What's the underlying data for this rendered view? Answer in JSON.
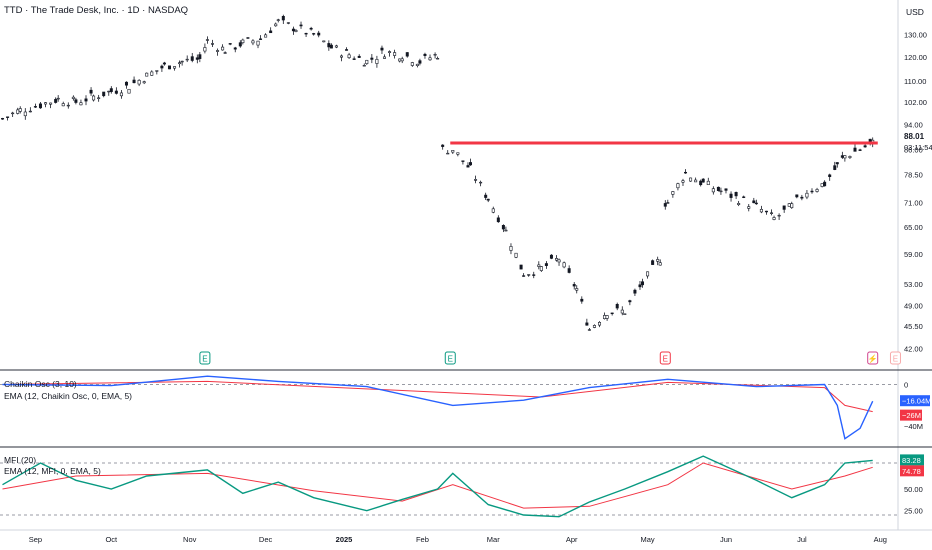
{
  "symbol_title": "TTD · The Trade Desk, Inc. · 1D · NASDAQ",
  "currency": "USD",
  "chart_data": {
    "type": "candlestick",
    "price_axis": {
      "ticks": [
        42.0,
        45.5,
        49.0,
        53.0,
        59.0,
        65.0,
        71.0,
        78.5,
        86.0,
        94.0,
        102.0,
        110.0,
        120.0,
        130.0
      ],
      "last_price": "88.01",
      "countdown": "03:11:54",
      "scale": "log"
    },
    "x_axis": {
      "ticks": [
        "Sep",
        "Oct",
        "Nov",
        "Dec",
        "2025",
        "Feb",
        "Mar",
        "Apr",
        "May",
        "Jun",
        "Jul",
        "Aug"
      ],
      "range": [
        "2024-08-18",
        "2025-08-08"
      ]
    },
    "horizontal_line": {
      "price": 88.0,
      "from": "2025-02-12",
      "to": "2025-07-31",
      "color": "#f23645"
    },
    "price_series": [
      {
        "date": "2024-08-19",
        "close": 96
      },
      {
        "date": "2024-08-26",
        "close": 99
      },
      {
        "date": "2024-09-03",
        "close": 101
      },
      {
        "date": "2024-09-10",
        "close": 103
      },
      {
        "date": "2024-09-17",
        "close": 102
      },
      {
        "date": "2024-09-24",
        "close": 104
      },
      {
        "date": "2024-10-01",
        "close": 106
      },
      {
        "date": "2024-10-08",
        "close": 108
      },
      {
        "date": "2024-10-15",
        "close": 112
      },
      {
        "date": "2024-10-22",
        "close": 116
      },
      {
        "date": "2024-10-29",
        "close": 118
      },
      {
        "date": "2024-11-05",
        "close": 119
      },
      {
        "date": "2024-11-08",
        "close": 127
      },
      {
        "date": "2024-11-15",
        "close": 123
      },
      {
        "date": "2024-11-22",
        "close": 126
      },
      {
        "date": "2024-11-29",
        "close": 128
      },
      {
        "date": "2024-12-06",
        "close": 136
      },
      {
        "date": "2024-12-13",
        "close": 133
      },
      {
        "date": "2024-12-20",
        "close": 130
      },
      {
        "date": "2024-12-27",
        "close": 124
      },
      {
        "date": "2025-01-03",
        "close": 121
      },
      {
        "date": "2025-01-10",
        "close": 118
      },
      {
        "date": "2025-01-17",
        "close": 122
      },
      {
        "date": "2025-01-24",
        "close": 121
      },
      {
        "date": "2025-01-31",
        "close": 118
      },
      {
        "date": "2025-02-07",
        "close": 121
      },
      {
        "date": "2025-02-13",
        "close": 86
      },
      {
        "date": "2025-02-20",
        "close": 80
      },
      {
        "date": "2025-02-27",
        "close": 72
      },
      {
        "date": "2025-03-06",
        "close": 64
      },
      {
        "date": "2025-03-13",
        "close": 55
      },
      {
        "date": "2025-03-20",
        "close": 56
      },
      {
        "date": "2025-03-27",
        "close": 58
      },
      {
        "date": "2025-04-03",
        "close": 52
      },
      {
        "date": "2025-04-08",
        "close": 45
      },
      {
        "date": "2025-04-15",
        "close": 48
      },
      {
        "date": "2025-04-22",
        "close": 48
      },
      {
        "date": "2025-04-29",
        "close": 53
      },
      {
        "date": "2025-05-06",
        "close": 58
      },
      {
        "date": "2025-05-09",
        "close": 71
      },
      {
        "date": "2025-05-16",
        "close": 79
      },
      {
        "date": "2025-05-23",
        "close": 76
      },
      {
        "date": "2025-05-30",
        "close": 74
      },
      {
        "date": "2025-06-06",
        "close": 72
      },
      {
        "date": "2025-06-13",
        "close": 70
      },
      {
        "date": "2025-06-20",
        "close": 67
      },
      {
        "date": "2025-06-27",
        "close": 70
      },
      {
        "date": "2025-07-03",
        "close": 74
      },
      {
        "date": "2025-07-10",
        "close": 76
      },
      {
        "date": "2025-07-15",
        "close": 81
      },
      {
        "date": "2025-07-18",
        "close": 84
      },
      {
        "date": "2025-07-24",
        "close": 86
      },
      {
        "date": "2025-07-29",
        "close": 88
      }
    ],
    "event_markers": [
      {
        "label": "E",
        "date": "2024-11-07",
        "color": "#089981"
      },
      {
        "label": "E",
        "date": "2025-02-12",
        "color": "#089981"
      },
      {
        "label": "E",
        "date": "2025-05-08",
        "color": "#f23645"
      },
      {
        "label": "⚡",
        "date": "2025-07-29",
        "color": "#d1448e"
      },
      {
        "label": "E",
        "date": "2025-08-07",
        "color": "#f7a9a9"
      }
    ],
    "chaikin_panel": {
      "title": "Chaikin Osc (3, 10)",
      "ema_label": "EMA (12, Chaikin Osc, 0, EMA, 5)",
      "ticks": [
        "0",
        "−40M"
      ],
      "osc_value": "−16.04M",
      "ema_value": "−26M",
      "osc_color": "#2962ff",
      "ema_color": "#f23645",
      "series_osc": [
        {
          "date": "2024-08-19",
          "value": 0
        },
        {
          "date": "2024-10-01",
          "value": -1
        },
        {
          "date": "2024-11-08",
          "value": 8
        },
        {
          "date": "2024-12-06",
          "value": 3
        },
        {
          "date": "2025-01-10",
          "value": -2
        },
        {
          "date": "2025-02-13",
          "value": -20
        },
        {
          "date": "2025-03-13",
          "value": -15
        },
        {
          "date": "2025-04-08",
          "value": -3
        },
        {
          "date": "2025-05-09",
          "value": 5
        },
        {
          "date": "2025-06-13",
          "value": -2
        },
        {
          "date": "2025-07-10",
          "value": 0
        },
        {
          "date": "2025-07-15",
          "value": -20
        },
        {
          "date": "2025-07-18",
          "value": -52
        },
        {
          "date": "2025-07-24",
          "value": -42
        },
        {
          "date": "2025-07-29",
          "value": -16
        }
      ],
      "series_ema": [
        {
          "date": "2024-08-19",
          "value": 0
        },
        {
          "date": "2024-11-08",
          "value": 3
        },
        {
          "date": "2025-02-13",
          "value": -8
        },
        {
          "date": "2025-03-20",
          "value": -12
        },
        {
          "date": "2025-05-09",
          "value": 2
        },
        {
          "date": "2025-07-10",
          "value": -3
        },
        {
          "date": "2025-07-18",
          "value": -20
        },
        {
          "date": "2025-07-29",
          "value": -26
        }
      ]
    },
    "mfi_panel": {
      "title": "MFI (20)",
      "ema_label": "EMA (12, MFI, 0, EMA, 5)",
      "ticks": [
        "50.00",
        "25.00"
      ],
      "upper_band": 80,
      "lower_band": 20,
      "mfi_value": "83.28",
      "ema_value": "74.78",
      "mfi_color": "#089981",
      "ema_color": "#f23645",
      "series_mfi": [
        {
          "date": "2024-08-19",
          "value": 55
        },
        {
          "date": "2024-09-03",
          "value": 80
        },
        {
          "date": "2024-09-17",
          "value": 60
        },
        {
          "date": "2024-10-01",
          "value": 50
        },
        {
          "date": "2024-10-15",
          "value": 65
        },
        {
          "date": "2024-11-08",
          "value": 72
        },
        {
          "date": "2024-11-22",
          "value": 45
        },
        {
          "date": "2024-12-06",
          "value": 58
        },
        {
          "date": "2024-12-20",
          "value": 40
        },
        {
          "date": "2025-01-10",
          "value": 25
        },
        {
          "date": "2025-01-24",
          "value": 38
        },
        {
          "date": "2025-02-07",
          "value": 50
        },
        {
          "date": "2025-02-13",
          "value": 68
        },
        {
          "date": "2025-02-27",
          "value": 32
        },
        {
          "date": "2025-03-13",
          "value": 20
        },
        {
          "date": "2025-03-27",
          "value": 18
        },
        {
          "date": "2025-04-08",
          "value": 35
        },
        {
          "date": "2025-04-22",
          "value": 50
        },
        {
          "date": "2025-05-09",
          "value": 70
        },
        {
          "date": "2025-05-23",
          "value": 88
        },
        {
          "date": "2025-06-13",
          "value": 60
        },
        {
          "date": "2025-06-27",
          "value": 40
        },
        {
          "date": "2025-07-10",
          "value": 55
        },
        {
          "date": "2025-07-18",
          "value": 80
        },
        {
          "date": "2025-07-29",
          "value": 83
        }
      ],
      "series_ema": [
        {
          "date": "2024-08-19",
          "value": 50
        },
        {
          "date": "2024-09-17",
          "value": 65
        },
        {
          "date": "2024-11-08",
          "value": 68
        },
        {
          "date": "2024-12-20",
          "value": 48
        },
        {
          "date": "2025-01-24",
          "value": 36
        },
        {
          "date": "2025-02-13",
          "value": 55
        },
        {
          "date": "2025-03-13",
          "value": 28
        },
        {
          "date": "2025-04-08",
          "value": 30
        },
        {
          "date": "2025-05-09",
          "value": 55
        },
        {
          "date": "2025-05-23",
          "value": 80
        },
        {
          "date": "2025-06-27",
          "value": 50
        },
        {
          "date": "2025-07-18",
          "value": 65
        },
        {
          "date": "2025-07-29",
          "value": 75
        }
      ]
    }
  }
}
